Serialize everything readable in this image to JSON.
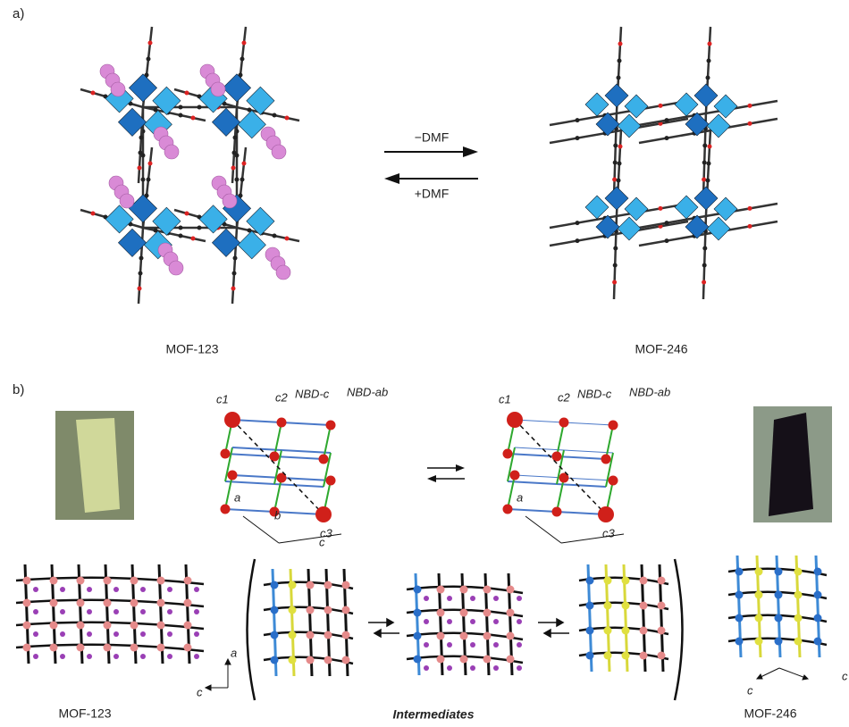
{
  "panel_a": {
    "label": "a)",
    "forward": "−DMF",
    "reverse": "+DMF",
    "left_caption": "MOF-123",
    "right_caption": "MOF-246"
  },
  "panel_b": {
    "label": "b)",
    "net_left": {
      "c1": "c1",
      "c2": "c2",
      "nbd_c": "NBD-c",
      "nbd_ab": "NBD-ab",
      "c3": "c3",
      "axis_a": "a",
      "axis_b": "b",
      "axis_c": "c"
    },
    "net_right": {
      "c1": "c1",
      "c2": "c2",
      "nbd_c": "NBD-c",
      "nbd_ab": "NBD-ab",
      "c3": "c3",
      "axis_a": "a"
    },
    "left_axes": {
      "a": "a",
      "c": "c"
    },
    "right_axes": {
      "c1": "c",
      "c2": "c"
    },
    "left_caption": "MOF-123",
    "middle_caption": "Intermediates",
    "right_caption": "MOF-246"
  }
}
